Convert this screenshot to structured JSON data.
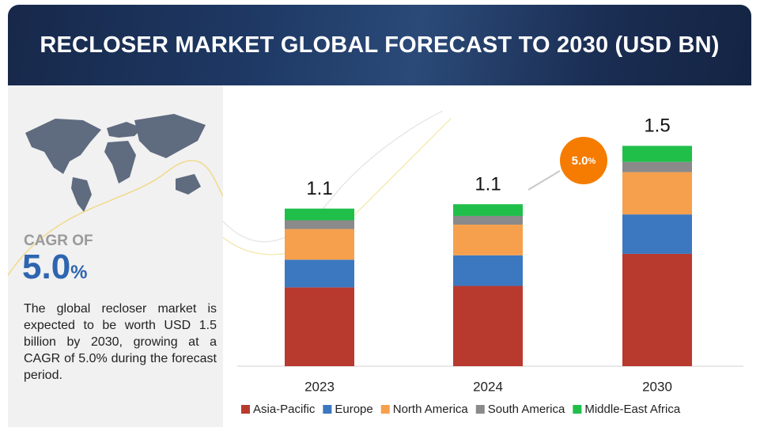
{
  "header": {
    "title": "RECLOSER MARKET GLOBAL FORECAST TO 2030 (USD BN)"
  },
  "sidebar": {
    "cagr_label": "CAGR OF",
    "cagr_number": "5.0",
    "cagr_unit": "%",
    "description": "The global recloser market is expected to be worth USD 1.5 billion by 2030, growing at a CAGR of 5.0% during the forecast period."
  },
  "chart_data": {
    "type": "stacked-bar",
    "categories": [
      "2023",
      "2024",
      "2030"
    ],
    "series": [
      {
        "name": "Asia-Pacific",
        "color": "#b83a2f",
        "values": [
          0.54,
          0.55,
          0.77
        ]
      },
      {
        "name": "Europe",
        "color": "#3c78c0",
        "values": [
          0.19,
          0.21,
          0.27
        ]
      },
      {
        "name": "North America",
        "color": "#f6a04d",
        "values": [
          0.21,
          0.21,
          0.29
        ]
      },
      {
        "name": "South America",
        "color": "#8a8a8a",
        "values": [
          0.06,
          0.06,
          0.07
        ]
      },
      {
        "name": "Middle-East Africa",
        "color": "#1fbf4a",
        "values": [
          0.08,
          0.08,
          0.11
        ]
      }
    ],
    "totals": [
      1.1,
      1.1,
      1.5
    ],
    "annotation": {
      "number": "5.0",
      "unit": "%"
    }
  }
}
